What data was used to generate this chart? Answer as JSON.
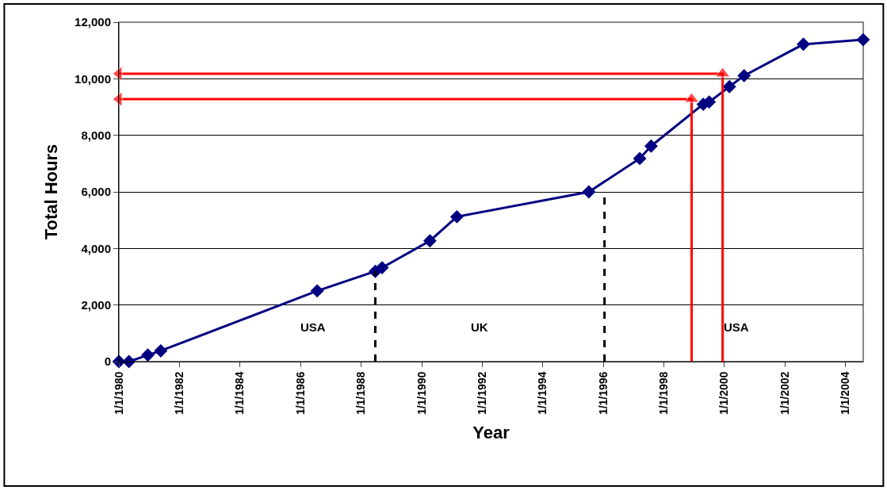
{
  "chart_data": {
    "type": "line",
    "xlabel": "Year",
    "ylabel": "Total Hours",
    "x": [
      "1980-01-01",
      "1980-05-01",
      "1980-12-15",
      "1981-05-20",
      "1986-07-20",
      "1988-06-20",
      "1988-09-10",
      "1990-04-10",
      "1991-03-01",
      "1995-07-10",
      "1997-03-15",
      "1997-07-30",
      "1999-04-20",
      "1999-07-01",
      "2000-03-01",
      "2000-08-25",
      "2002-08-10",
      "2004-08-01"
    ],
    "series": [
      {
        "color": "#000080",
        "marker": "diamond",
        "values": [
          0,
          0,
          230,
          380,
          2500,
          3190,
          3320,
          4270,
          5120,
          6000,
          7180,
          7620,
          9100,
          9180,
          9720,
          10110,
          11220,
          11380
        ]
      },
      {
        "type": "line",
        "color": "#ff0000",
        "marker": "triangle",
        "x": [
          "1998-12-01",
          "1998-12-01",
          "1980-01-01"
        ],
        "values": [
          0,
          9280,
          9280
        ]
      },
      {
        "type": "line",
        "color": "#ff0000",
        "marker": "triangle",
        "x": [
          "1999-12-10",
          "1999-12-10",
          "1980-01-01"
        ],
        "values": [
          0,
          10180,
          10180
        ]
      },
      {
        "type": "line",
        "color": "#000000",
        "marker": "none",
        "line_style": "dashed",
        "x": [
          "1988-06-20",
          "1988-06-20"
        ],
        "values": [
          0,
          3190
        ]
      },
      {
        "type": "line",
        "color": "#000000",
        "marker": "none",
        "line_style": "dashed",
        "x": [
          "1996-01-15",
          "1996-01-15"
        ],
        "values": [
          0,
          6000
        ]
      }
    ],
    "annotations": [
      "USA",
      "UK",
      "USA"
    ],
    "xlim": [
      "1980-01-01",
      "2004-08-01"
    ],
    "xticks": [
      {
        "value": "1980-01-01",
        "label": "1/1/1980"
      },
      {
        "value": "1982-01-01",
        "label": "1/1/1982"
      },
      {
        "value": "1984-01-01",
        "label": "1/1/1984"
      },
      {
        "value": "1986-01-01",
        "label": "1/1/1986"
      },
      {
        "value": "1988-01-01",
        "label": "1/1/1988"
      },
      {
        "value": "1990-01-01",
        "label": "1/1/1990"
      },
      {
        "value": "1992-01-01",
        "label": "1/1/1992"
      },
      {
        "value": "1994-01-01",
        "label": "1/1/1994"
      },
      {
        "value": "1996-01-01",
        "label": "1/1/1996"
      },
      {
        "value": "1998-01-01",
        "label": "1/1/1998"
      },
      {
        "value": "2000-01-01",
        "label": "1/1/2000"
      },
      {
        "value": "2002-01-01",
        "label": "1/1/2002"
      },
      {
        "value": "2004-01-01",
        "label": "1/1/2004"
      }
    ],
    "ylim": [
      0,
      12000
    ],
    "yticks": [
      {
        "value": 0,
        "label": "0"
      },
      {
        "value": 2000,
        "label": "2,000"
      },
      {
        "value": 4000,
        "label": "4,000"
      },
      {
        "value": 6000,
        "label": "6,000"
      },
      {
        "value": 8000,
        "label": "8,000"
      },
      {
        "value": 10000,
        "label": "10,000"
      },
      {
        "value": 12000,
        "label": "12,000"
      }
    ],
    "grid": "y",
    "line_style": "solid"
  }
}
